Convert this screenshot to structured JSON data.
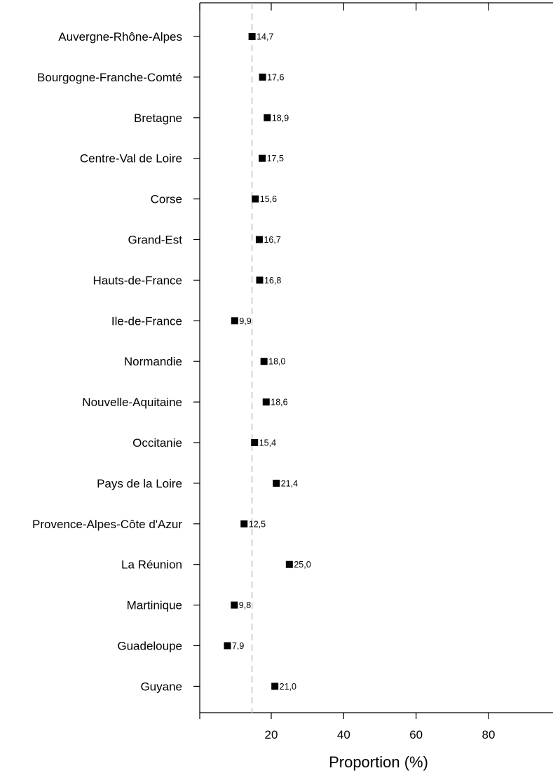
{
  "chart_data": {
    "type": "scatter",
    "orientation": "horizontal-dot-plot",
    "categories": [
      "Auvergne-Rhône-Alpes",
      "Bourgogne-Franche-Comté",
      "Bretagne",
      "Centre-Val de Loire",
      "Corse",
      "Grand-Est",
      "Hauts-de-France",
      "Ile-de-France",
      "Normandie",
      "Nouvelle-Aquitaine",
      "Occitanie",
      "Pays de la Loire",
      "Provence-Alpes-Côte d'Azur",
      "La Réunion",
      "Martinique",
      "Guadeloupe",
      "Guyane"
    ],
    "values": [
      14.7,
      17.6,
      18.9,
      17.5,
      15.6,
      16.7,
      16.8,
      9.9,
      18.0,
      18.6,
      15.4,
      21.4,
      12.5,
      25.0,
      9.8,
      7.9,
      21.0
    ],
    "value_labels": [
      "14,7",
      "17,6",
      "18,9",
      "17,5",
      "15,6",
      "16,7",
      "16,8",
      "9,9",
      "18,0",
      "18,6",
      "15,4",
      "21,4",
      "12,5",
      "25,0",
      "9,8",
      "7,9",
      "21,0"
    ],
    "xlabel": "Proportion (%)",
    "ylabel": "",
    "title": "",
    "xlim": [
      0,
      98
    ],
    "xticks": [
      20,
      40,
      60,
      80
    ],
    "xtick_labels": [
      "20",
      "40",
      "60",
      "80"
    ],
    "reference_line": {
      "value": 14.7,
      "style": "dashed",
      "color": "#c8c8c8"
    },
    "marker": "square",
    "marker_color": "#000000",
    "grid": false
  }
}
